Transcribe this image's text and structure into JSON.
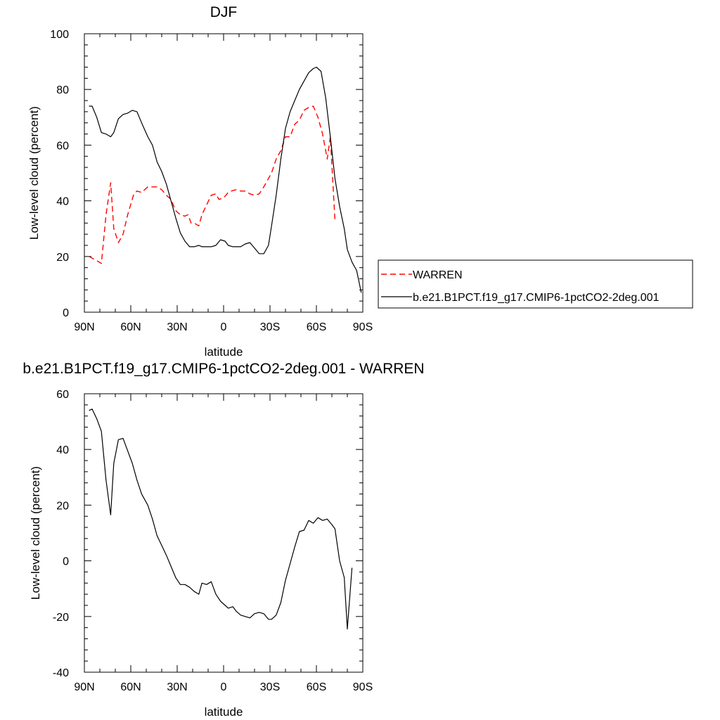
{
  "chart_data": [
    {
      "type": "line",
      "title": "DJF",
      "xlabel": "latitude",
      "ylabel": "Low-level cloud (percent)",
      "xlim": [
        90,
        -90
      ],
      "ylim": [
        0,
        100
      ],
      "x_ticks": [
        {
          "value": 90,
          "label": "90N"
        },
        {
          "value": 60,
          "label": "60N"
        },
        {
          "value": 30,
          "label": "30N"
        },
        {
          "value": 0,
          "label": "0"
        },
        {
          "value": -30,
          "label": "30S"
        },
        {
          "value": -60,
          "label": "60S"
        },
        {
          "value": -90,
          "label": "90S"
        }
      ],
      "y_ticks": [
        0,
        20,
        40,
        60,
        80,
        100
      ],
      "legend_position": "right",
      "series": [
        {
          "name": "WARREN",
          "color": "#ff0000",
          "dash": "dashed",
          "points": [
            [
              87,
              20
            ],
            [
              82,
              18.5
            ],
            [
              79,
              17.5
            ],
            [
              76,
              35
            ],
            [
              73,
              46.5
            ],
            [
              71,
              30
            ],
            [
              68,
              25
            ],
            [
              65,
              28
            ],
            [
              62,
              35
            ],
            [
              58,
              42.5
            ],
            [
              56,
              43.5
            ],
            [
              53,
              43
            ],
            [
              49,
              45
            ],
            [
              46,
              45
            ],
            [
              43,
              45
            ],
            [
              40,
              44
            ],
            [
              37,
              42
            ],
            [
              34,
              40.5
            ],
            [
              31,
              36.5
            ],
            [
              28,
              35
            ],
            [
              25,
              34.5
            ],
            [
              23,
              35
            ],
            [
              21,
              32
            ],
            [
              19,
              32
            ],
            [
              16,
              31
            ],
            [
              14,
              35
            ],
            [
              11,
              38.5
            ],
            [
              8,
              42
            ],
            [
              5,
              42.5
            ],
            [
              3,
              40.5
            ],
            [
              0,
              41
            ],
            [
              -3,
              43
            ],
            [
              -5,
              43.5
            ],
            [
              -8,
              44
            ],
            [
              -11,
              43.5
            ],
            [
              -14,
              43.5
            ],
            [
              -17,
              42.5
            ],
            [
              -20,
              42
            ],
            [
              -23,
              42.5
            ],
            [
              -26,
              45
            ],
            [
              -29,
              48
            ],
            [
              -31,
              50
            ],
            [
              -34,
              55
            ],
            [
              -37,
              58
            ],
            [
              -40,
              63
            ],
            [
              -43,
              63
            ],
            [
              -46,
              67.5
            ],
            [
              -49,
              69
            ],
            [
              -52,
              72.5
            ],
            [
              -55,
              73.5
            ],
            [
              -58,
              74
            ],
            [
              -61,
              70
            ],
            [
              -64,
              64
            ],
            [
              -67,
              55
            ],
            [
              -69,
              63
            ],
            [
              -72,
              33
            ]
          ]
        },
        {
          "name": "b.e21.B1PCT.f19_g17.CMIP6-1pctCO2-2deg.001",
          "color": "#000000",
          "dash": "solid",
          "points": [
            [
              87,
              74
            ],
            [
              85,
              74
            ],
            [
              82,
              70
            ],
            [
              79,
              64.5
            ],
            [
              76,
              64
            ],
            [
              73,
              63
            ],
            [
              71,
              64.5
            ],
            [
              68,
              69.5
            ],
            [
              65,
              71
            ],
            [
              62,
              71.5
            ],
            [
              59,
              72.5
            ],
            [
              56,
              72
            ],
            [
              53,
              68
            ],
            [
              49,
              63
            ],
            [
              46,
              60
            ],
            [
              43,
              54
            ],
            [
              40,
              50.5
            ],
            [
              37,
              46
            ],
            [
              34,
              40
            ],
            [
              31,
              34
            ],
            [
              28,
              28.5
            ],
            [
              25,
              25.5
            ],
            [
              22,
              23.5
            ],
            [
              19,
              23.5
            ],
            [
              16,
              24
            ],
            [
              14,
              23.5
            ],
            [
              11,
              23.5
            ],
            [
              8,
              23.5
            ],
            [
              5,
              24
            ],
            [
              2,
              26
            ],
            [
              -1,
              25.5
            ],
            [
              -3,
              24
            ],
            [
              -6,
              23.5
            ],
            [
              -8,
              23.5
            ],
            [
              -11,
              23.5
            ],
            [
              -14,
              24.5
            ],
            [
              -17,
              25
            ],
            [
              -20,
              23
            ],
            [
              -23,
              21
            ],
            [
              -26,
              21
            ],
            [
              -29,
              24
            ],
            [
              -31,
              31
            ],
            [
              -34,
              42
            ],
            [
              -37,
              55
            ],
            [
              -40,
              66
            ],
            [
              -43,
              72
            ],
            [
              -46,
              76
            ],
            [
              -49,
              80
            ],
            [
              -52,
              83
            ],
            [
              -55,
              86
            ],
            [
              -58,
              87.5
            ],
            [
              -60,
              88
            ],
            [
              -63,
              86.5
            ],
            [
              -66,
              77
            ],
            [
              -69,
              63
            ],
            [
              -72,
              48
            ],
            [
              -75,
              38
            ],
            [
              -78,
              30
            ],
            [
              -80,
              22.5
            ],
            [
              -83,
              18
            ],
            [
              -86,
              15
            ],
            [
              -89,
              7
            ]
          ]
        }
      ]
    },
    {
      "type": "line",
      "title": "b.e21.B1PCT.f19_g17.CMIP6-1pctCO2-2deg.001 - WARREN",
      "xlabel": "latitude",
      "ylabel": "Low-level cloud (percent)",
      "xlim": [
        90,
        -90
      ],
      "ylim": [
        -40,
        60
      ],
      "x_ticks": [
        {
          "value": 90,
          "label": "90N"
        },
        {
          "value": 60,
          "label": "60N"
        },
        {
          "value": 30,
          "label": "30N"
        },
        {
          "value": 0,
          "label": "0"
        },
        {
          "value": -30,
          "label": "30S"
        },
        {
          "value": -60,
          "label": "60S"
        },
        {
          "value": -90,
          "label": "90S"
        }
      ],
      "y_ticks": [
        -40,
        -20,
        0,
        20,
        40,
        60
      ],
      "series": [
        {
          "color": "#000000",
          "dash": "solid",
          "points": [
            [
              87,
              54
            ],
            [
              85,
              54.5
            ],
            [
              82,
              51
            ],
            [
              79,
              46.5
            ],
            [
              76,
              29
            ],
            [
              73,
              16.5
            ],
            [
              71,
              35
            ],
            [
              68,
              43.5
            ],
            [
              65,
              44
            ],
            [
              62,
              39.5
            ],
            [
              59,
              35
            ],
            [
              56,
              29
            ],
            [
              53,
              24
            ],
            [
              49,
              20
            ],
            [
              46,
              15
            ],
            [
              43,
              9
            ],
            [
              40,
              5.5
            ],
            [
              37,
              2
            ],
            [
              34,
              -2
            ],
            [
              31,
              -6
            ],
            [
              28,
              -8.5
            ],
            [
              25,
              -8.5
            ],
            [
              22,
              -9.5
            ],
            [
              19,
              -11
            ],
            [
              16,
              -12
            ],
            [
              14,
              -8
            ],
            [
              11,
              -8.5
            ],
            [
              8,
              -7.5
            ],
            [
              5,
              -12
            ],
            [
              2,
              -14.5
            ],
            [
              -1,
              -16
            ],
            [
              -3,
              -17
            ],
            [
              -6,
              -16.5
            ],
            [
              -8,
              -18
            ],
            [
              -11,
              -19.5
            ],
            [
              -14,
              -20
            ],
            [
              -17,
              -20.5
            ],
            [
              -20,
              -19
            ],
            [
              -23,
              -18.5
            ],
            [
              -26,
              -19
            ],
            [
              -29,
              -21
            ],
            [
              -31,
              -21
            ],
            [
              -34,
              -19.5
            ],
            [
              -37,
              -15
            ],
            [
              -40,
              -7
            ],
            [
              -43,
              -1
            ],
            [
              -46,
              5
            ],
            [
              -49,
              10.5
            ],
            [
              -52,
              11
            ],
            [
              -55,
              14.5
            ],
            [
              -58,
              13.5
            ],
            [
              -61,
              15.5
            ],
            [
              -64,
              14.5
            ],
            [
              -67,
              15
            ],
            [
              -70,
              13
            ],
            [
              -72,
              11.5
            ],
            [
              -75,
              0
            ],
            [
              -78,
              -6
            ],
            [
              -80,
              -24.5
            ],
            [
              -83,
              -2.5
            ]
          ]
        }
      ]
    }
  ]
}
